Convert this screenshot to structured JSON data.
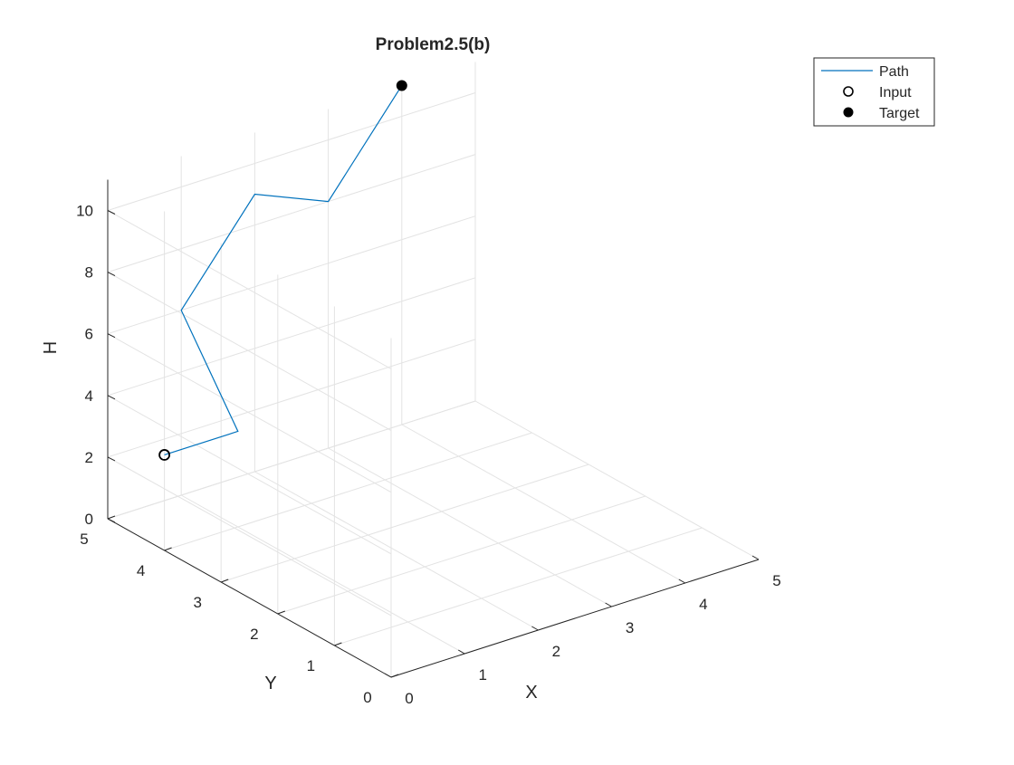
{
  "chart_data": {
    "type": "line3d",
    "title": "Problem2.5(b)",
    "xlabel": "X",
    "ylabel": "Y",
    "zlabel": "H",
    "xlim": [
      0,
      5
    ],
    "ylim": [
      0,
      5
    ],
    "zlim": [
      0,
      11
    ],
    "xticks": [
      "0",
      "1",
      "2",
      "3",
      "4",
      "5"
    ],
    "yticks": [
      "0",
      "1",
      "2",
      "3",
      "4",
      "5"
    ],
    "zticks": [
      "0",
      "2",
      "4",
      "6",
      "8",
      "10"
    ],
    "grid": true,
    "legend_position": "top-right",
    "series": [
      {
        "name": "Path",
        "kind": "line",
        "color": "#0072BD",
        "points": [
          {
            "x": 0,
            "y": 4,
            "z": 3.1
          },
          {
            "x": 1,
            "y": 4,
            "z": 3.1
          },
          {
            "x": 1,
            "y": 5,
            "z": 6
          },
          {
            "x": 2,
            "y": 5,
            "z": 9
          },
          {
            "x": 3,
            "y": 5,
            "z": 8
          },
          {
            "x": 4,
            "y": 5,
            "z": 11
          }
        ]
      },
      {
        "name": "Input",
        "kind": "marker-open",
        "color": "#000000",
        "points": [
          {
            "x": 0,
            "y": 4,
            "z": 3.1
          }
        ]
      },
      {
        "name": "Target",
        "kind": "marker-filled",
        "color": "#000000",
        "points": [
          {
            "x": 4,
            "y": 5,
            "z": 11
          }
        ]
      }
    ]
  }
}
